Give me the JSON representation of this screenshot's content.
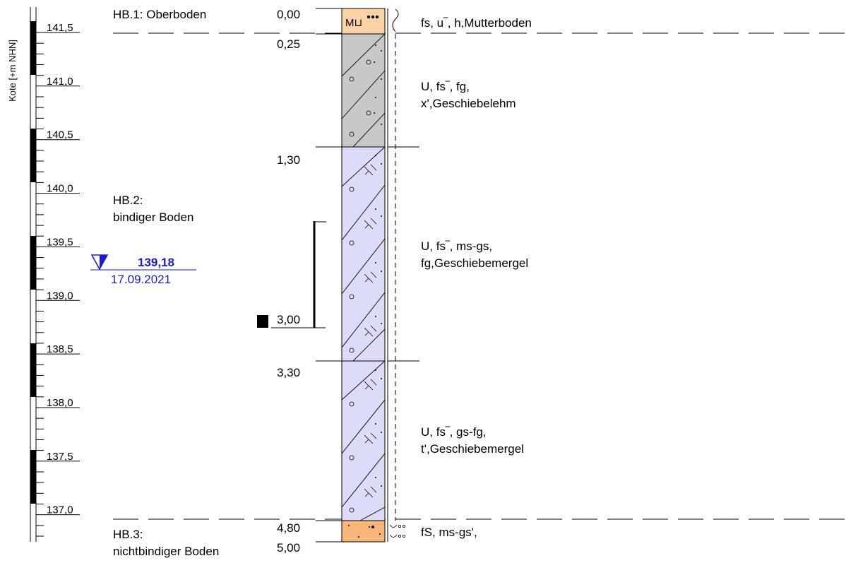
{
  "axis": {
    "label": "Kote [+m NHN]",
    "ticks": [
      "141,5",
      "141,0",
      "140,5",
      "140,0",
      "139,5",
      "139,0",
      "138,5",
      "138,0",
      "137,5",
      "137,0"
    ]
  },
  "homogeneous_zones": [
    {
      "title": "HB.1: Oberboden",
      "subtitle": ""
    },
    {
      "title": "HB.2:",
      "subtitle": "bindiger Boden"
    },
    {
      "title": "HB.3:",
      "subtitle": "nichtbindiger Boden"
    }
  ],
  "depths": [
    "0,00",
    "0,25",
    "1,30",
    "3,00",
    "3,30",
    "4,80",
    "5,00"
  ],
  "layers": [
    {
      "line1": "fs, u‾, h,Mutterboden",
      "line2": "",
      "color": "#fbd3a6",
      "symbol": "M⊔"
    },
    {
      "line1": "U, fs‾, fg,",
      "line2": "x',Geschiebelehm",
      "color": "#c8c8c8"
    },
    {
      "line1": "U, fs‾, ms-gs,",
      "line2": "fg,Geschiebemergel",
      "color": "#dcdcf8"
    },
    {
      "line1": "U, fs‾, gs-fg,",
      "line2": "t',Geschiebemergel",
      "color": "#dcdcf8"
    },
    {
      "line1": "fS, ms-gs',",
      "line2": "",
      "color": "#f9b67a"
    }
  ],
  "groundwater": {
    "level": "139,18",
    "date": "17.09.2021",
    "color": "#1a1ad0"
  }
}
